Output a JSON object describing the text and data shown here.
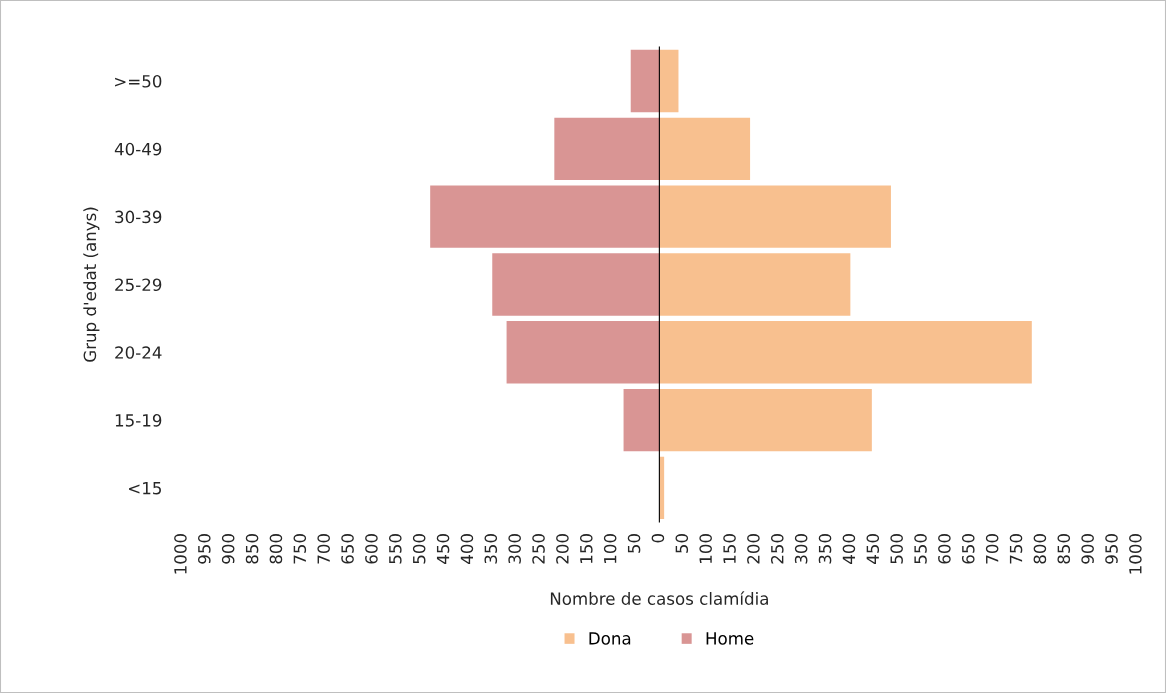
{
  "chart_data": {
    "type": "bar",
    "orientation": "horizontal",
    "stacked": true,
    "xlabel": "Nombre de casos clamídia",
    "ylabel": "Grup d'edat (anys)",
    "categories": [
      ">=50",
      "40-49",
      "30-39",
      "25-29",
      "20-24",
      "15-19",
      "<15"
    ],
    "series": [
      {
        "name": "Dona",
        "color": "#f8c08f",
        "values": [
          40,
          190,
          485,
          400,
          780,
          445,
          10
        ]
      },
      {
        "name": "Home",
        "color": "#d99594",
        "values": [
          -60,
          -220,
          -480,
          -350,
          -320,
          -75,
          0
        ]
      }
    ],
    "xlim": [
      -1000,
      1000
    ],
    "xticks": [
      {
        "value": -1000,
        "label": "1000"
      },
      {
        "value": -950,
        "label": "950"
      },
      {
        "value": -900,
        "label": "900"
      },
      {
        "value": -850,
        "label": "850"
      },
      {
        "value": -800,
        "label": "800"
      },
      {
        "value": -750,
        "label": "750"
      },
      {
        "value": -700,
        "label": "700"
      },
      {
        "value": -650,
        "label": "650"
      },
      {
        "value": -600,
        "label": "600"
      },
      {
        "value": -550,
        "label": "550"
      },
      {
        "value": -500,
        "label": "500"
      },
      {
        "value": -450,
        "label": "450"
      },
      {
        "value": -400,
        "label": "400"
      },
      {
        "value": -350,
        "label": "350"
      },
      {
        "value": -300,
        "label": "300"
      },
      {
        "value": -250,
        "label": "250"
      },
      {
        "value": -200,
        "label": "200"
      },
      {
        "value": -150,
        "label": "150"
      },
      {
        "value": -100,
        "label": "100"
      },
      {
        "value": -50,
        "label": "50"
      },
      0,
      50,
      100,
      150,
      200,
      250,
      300,
      350,
      400,
      450,
      500,
      550,
      600,
      650,
      700,
      750,
      800,
      850,
      900,
      950,
      1000
    ],
    "legend": "bottom"
  }
}
